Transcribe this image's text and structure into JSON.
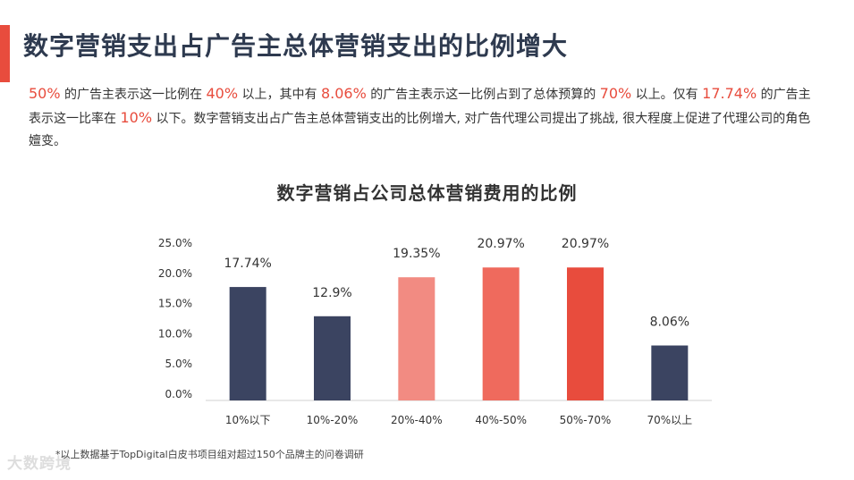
{
  "page": {
    "title": "数字营销支出占广告主总体营销支出的比例增大",
    "intro": [
      {
        "t": "50%",
        "hl": true
      },
      {
        "t": " 的广告主表示这一比例在 ",
        "hl": false
      },
      {
        "t": "40%",
        "hl": true
      },
      {
        "t": " 以上，其中有 ",
        "hl": false
      },
      {
        "t": "8.06%",
        "hl": true
      },
      {
        "t": " 的广告主表示这一比例占到了总体预算的 ",
        "hl": false
      },
      {
        "t": "70%",
        "hl": true
      },
      {
        "t": " 以上。仅有 ",
        "hl": false
      },
      {
        "t": "17.74%",
        "hl": true
      },
      {
        "t": " 的广告主表示这一比率在 ",
        "hl": false
      },
      {
        "t": "10%",
        "hl": true
      },
      {
        "t": " 以下。数字营销支出占广告主总体营销支出的比例增大, 对广告代理公司提出了挑战, 很大程度上促进了代理公司的角色嬗变。",
        "hl": false
      }
    ],
    "footnote": "*以上数据基于TopDigital白皮书项目组对超过150个品牌主的问卷调研",
    "watermark": "大数跨境"
  },
  "colors": {
    "accent": "#e84c3d",
    "title": "#2e3a4f"
  },
  "chart_data": {
    "type": "bar",
    "title": "数字营销占公司总体营销费用的比例",
    "categories": [
      "10%以下",
      "10%-20%",
      "20%-40%",
      "40%-50%",
      "50%-70%",
      "70%以上"
    ],
    "values": [
      17.74,
      12.9,
      19.35,
      20.97,
      20.97,
      8.06
    ],
    "value_labels": [
      "17.74%",
      "12.9%",
      "19.35%",
      "20.97%",
      "20.97%",
      "8.06%"
    ],
    "bar_colors": [
      "#3b4461",
      "#3b4461",
      "#f28b82",
      "#ef6a5d",
      "#e84c3d",
      "#3b4461"
    ],
    "y_ticks": [
      "0.0%",
      "5.0%",
      "10.0%",
      "15.0%",
      "20.0%",
      "25.0%"
    ],
    "ylim": [
      0,
      25
    ],
    "xlabel": "",
    "ylabel": "",
    "grid": false,
    "legend": "none"
  }
}
